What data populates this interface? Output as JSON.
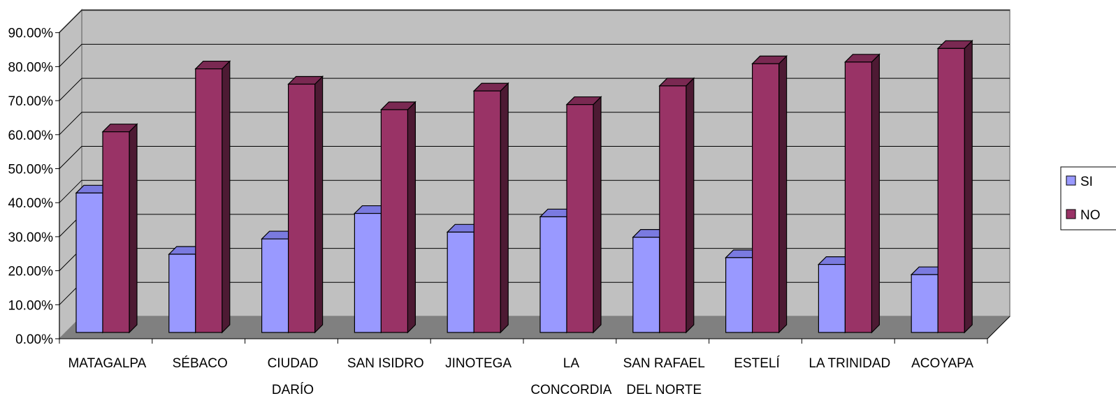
{
  "chart_data": {
    "type": "bar",
    "categories": [
      [
        "MATAGALPA"
      ],
      [
        "SÉBACO"
      ],
      [
        "CIUDAD",
        "DARÍO"
      ],
      [
        "SAN ISIDRO"
      ],
      [
        "JINOTEGA"
      ],
      [
        "LA",
        "CONCORDIA"
      ],
      [
        "SAN RAFAEL",
        "DEL NORTE"
      ],
      [
        "ESTELÍ"
      ],
      [
        "LA TRINIDAD"
      ],
      [
        "ACOYAPA"
      ]
    ],
    "series": [
      {
        "name": "SI",
        "values": [
          41,
          23,
          27.5,
          35,
          29.5,
          34,
          28,
          22,
          20,
          17
        ],
        "color": "#9999ff",
        "side": "#6666cc",
        "top": "#7a7ae0"
      },
      {
        "name": "NO",
        "values": [
          59,
          77.5,
          73,
          65.5,
          71,
          67,
          72.5,
          79,
          79.5,
          83.5
        ],
        "color": "#993366",
        "side": "#4d1a33",
        "top": "#7a2952"
      }
    ],
    "yticks": [
      "0.00%",
      "10.00%",
      "20.00%",
      "30.00%",
      "40.00%",
      "50.00%",
      "60.00%",
      "70.00%",
      "80.00%",
      "90.00%"
    ],
    "ylim": [
      0,
      90
    ],
    "title": "",
    "xlabel": "",
    "ylabel": "",
    "grid": true,
    "legend_position": "right",
    "legend_labels": [
      "SI",
      "NO"
    ]
  }
}
